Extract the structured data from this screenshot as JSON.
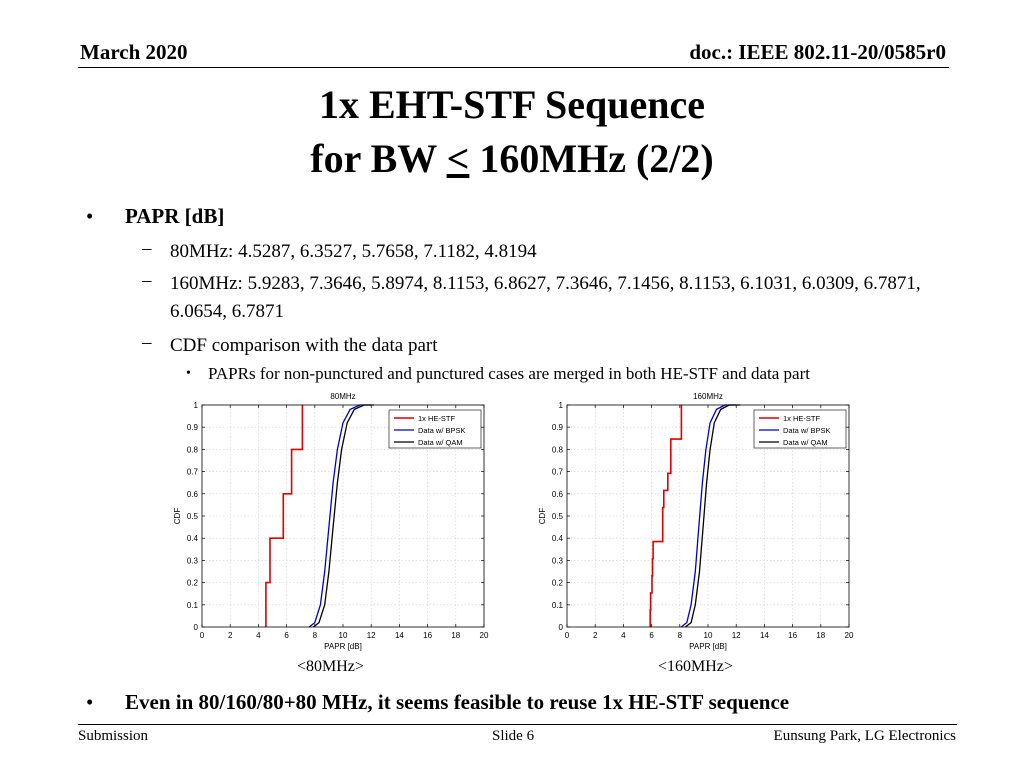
{
  "header": {
    "date": "March 2020",
    "doc": "doc.: IEEE 802.11-20/0585r0"
  },
  "title": {
    "line1": "1x EHT-STF Sequence",
    "line2_pre": "for BW ",
    "line2_le": "<",
    "line2_post": " 160MHz (2/2)"
  },
  "bullets": {
    "papr_heading": "PAPR [dB]",
    "dash": "–",
    "bullet_char": "•",
    "sub1": "80MHz: 4.5287, 6.3527, 5.7658, 7.1182, 4.8194",
    "sub2": "160MHz: 5.9283, 7.3646, 5.8974, 8.1153, 6.8627, 7.3646, 7.1456, 8.1153, 6.1031, 6.0309, 6.7871, 6.0654, 6.7871",
    "sub3": "CDF comparison with the data part",
    "subsub": "PAPRs for non-punctured and punctured cases are merged in both HE-STF and data part",
    "conclusion": "Even in 80/160/80+80 MHz, it seems feasible to reuse 1x HE-STF sequence"
  },
  "captions": {
    "c80": "<80MHz>",
    "c160": "<160MHz>"
  },
  "colors": {
    "he_stf": "#e00000",
    "bpsk": "#0000cc",
    "qam": "#000000",
    "grid": "#d0d0d0"
  },
  "chart_data": [
    {
      "type": "line",
      "title": "80MHz",
      "xlabel": "PAPR [dB]",
      "ylabel": "CDF",
      "xlim": [
        0,
        20
      ],
      "ylim": [
        0,
        1
      ],
      "xticks": [
        0,
        2,
        4,
        6,
        8,
        10,
        12,
        14,
        16,
        18,
        20
      ],
      "yticks": [
        0,
        0.1,
        0.2,
        0.3,
        0.4,
        0.5,
        0.6,
        0.7,
        0.8,
        0.9,
        1
      ],
      "grid": true,
      "legend_position": "top-right",
      "series": [
        {
          "name": "1x HE-STF",
          "step": true,
          "x": [
            4.5287,
            4.8194,
            5.7658,
            6.3527,
            7.1182
          ],
          "y": [
            0.2,
            0.4,
            0.6,
            0.8,
            1.0
          ]
        },
        {
          "name": "Data w/ BPSK",
          "x": [
            7.6,
            8.0,
            8.4,
            8.7,
            9.0,
            9.3,
            9.6,
            10.0,
            10.5,
            11.2,
            12.0
          ],
          "y": [
            0,
            0.02,
            0.1,
            0.25,
            0.45,
            0.65,
            0.8,
            0.92,
            0.98,
            1.0,
            1.0
          ]
        },
        {
          "name": "Data w/ QAM",
          "x": [
            7.9,
            8.3,
            8.7,
            9.0,
            9.3,
            9.6,
            9.9,
            10.3,
            10.8,
            11.5,
            12.2
          ],
          "y": [
            0,
            0.02,
            0.1,
            0.25,
            0.45,
            0.65,
            0.8,
            0.92,
            0.98,
            1.0,
            1.0
          ]
        }
      ]
    },
    {
      "type": "line",
      "title": "160MHz",
      "xlabel": "PAPR [dB]",
      "ylabel": "CDF",
      "xlim": [
        0,
        20
      ],
      "ylim": [
        0,
        1
      ],
      "xticks": [
        0,
        2,
        4,
        6,
        8,
        10,
        12,
        14,
        16,
        18,
        20
      ],
      "yticks": [
        0,
        0.1,
        0.2,
        0.3,
        0.4,
        0.5,
        0.6,
        0.7,
        0.8,
        0.9,
        1
      ],
      "grid": true,
      "legend_position": "top-right",
      "series": [
        {
          "name": "1x HE-STF",
          "step": true,
          "x": [
            5.8974,
            5.9283,
            6.0309,
            6.0654,
            6.1031,
            6.7871,
            6.8627,
            7.1456,
            7.3646,
            8.1153
          ],
          "y": [
            0.0769,
            0.1538,
            0.2308,
            0.3077,
            0.3846,
            0.5385,
            0.6154,
            0.6923,
            0.8462,
            1.0
          ]
        },
        {
          "name": "Data w/ BPSK",
          "x": [
            8.1,
            8.5,
            8.8,
            9.1,
            9.35,
            9.6,
            9.85,
            10.15,
            10.6,
            11.2,
            12.0
          ],
          "y": [
            0,
            0.02,
            0.1,
            0.25,
            0.45,
            0.65,
            0.8,
            0.92,
            0.98,
            1.0,
            1.0
          ]
        },
        {
          "name": "Data w/ QAM",
          "x": [
            8.4,
            8.8,
            9.1,
            9.4,
            9.65,
            9.9,
            10.15,
            10.45,
            10.9,
            11.5,
            12.3
          ],
          "y": [
            0,
            0.02,
            0.1,
            0.25,
            0.45,
            0.65,
            0.8,
            0.92,
            0.98,
            1.0,
            1.0
          ]
        }
      ]
    }
  ],
  "footer": {
    "left": "Submission",
    "mid": "Slide 6",
    "right": "Eunsung Park, LG Electronics"
  }
}
